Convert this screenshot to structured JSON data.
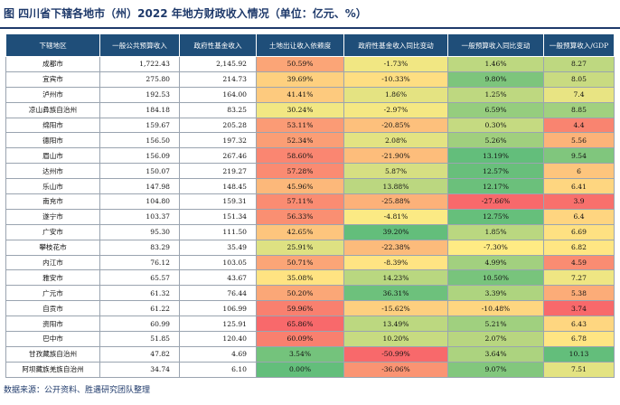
{
  "title": "图  四川省下辖各地市（州）2022 年地方财政收入情况（单位：亿元、%）",
  "source": "数据来源：公开资料、胜遇研究团队整理",
  "colors": {
    "header_bg": "#1f4e79",
    "high": "#63be7b",
    "mid": "#ffeb84",
    "low": "#f8696b"
  },
  "table": {
    "headers": [
      "下辖地区",
      "一般公共预算收入",
      "政府性基金收入",
      "土地出让收入依赖度",
      "政府性基金收入同比变动",
      "一般预算收入同比变动",
      "一般预算收入/GDP"
    ],
    "rows": [
      [
        "成都市",
        "1,722.43",
        "2,145.92",
        "50.59%",
        "-1.73%",
        "1.46%",
        "8.27"
      ],
      [
        "宜宾市",
        "275.80",
        "214.73",
        "39.69%",
        "-10.33%",
        "9.80%",
        "8.05"
      ],
      [
        "泸州市",
        "192.53",
        "164.00",
        "41.41%",
        "1.86%",
        "1.25%",
        "7.4"
      ],
      [
        "凉山彝族自治州",
        "184.18",
        "83.25",
        "30.24%",
        "-2.97%",
        "6.59%",
        "8.85"
      ],
      [
        "绵阳市",
        "159.67",
        "205.28",
        "53.11%",
        "-20.85%",
        "0.30%",
        "4.4"
      ],
      [
        "德阳市",
        "156.50",
        "197.32",
        "52.34%",
        "2.08%",
        "5.26%",
        "5.56"
      ],
      [
        "眉山市",
        "156.09",
        "267.46",
        "58.60%",
        "-21.90%",
        "13.19%",
        "9.54"
      ],
      [
        "达州市",
        "150.07",
        "219.27",
        "57.28%",
        "5.87%",
        "12.57%",
        "6"
      ],
      [
        "乐山市",
        "147.98",
        "148.45",
        "45.96%",
        "13.88%",
        "12.17%",
        "6.41"
      ],
      [
        "南充市",
        "104.80",
        "159.31",
        "57.11%",
        "-25.88%",
        "-27.66%",
        "3.9"
      ],
      [
        "遂宁市",
        "103.37",
        "151.34",
        "56.33%",
        "-4.81%",
        "12.75%",
        "6.4"
      ],
      [
        "广安市",
        "95.30",
        "111.50",
        "42.65%",
        "39.20%",
        "1.85%",
        "6.69"
      ],
      [
        "攀枝花市",
        "83.29",
        "35.49",
        "25.91%",
        "-22.38%",
        "-7.30%",
        "6.82"
      ],
      [
        "内江市",
        "76.12",
        "103.05",
        "50.71%",
        "-8.39%",
        "4.99%",
        "4.59"
      ],
      [
        "雅安市",
        "65.57",
        "43.67",
        "35.08%",
        "14.23%",
        "10.50%",
        "7.27"
      ],
      [
        "广元市",
        "61.32",
        "76.44",
        "50.20%",
        "36.31%",
        "3.39%",
        "5.38"
      ],
      [
        "自贡市",
        "61.22",
        "106.99",
        "59.96%",
        "-15.62%",
        "-10.48%",
        "3.74"
      ],
      [
        "资阳市",
        "60.99",
        "125.91",
        "65.86%",
        "13.49%",
        "5.21%",
        "6.43"
      ],
      [
        "巴中市",
        "51.85",
        "120.40",
        "60.09%",
        "10.20%",
        "2.07%",
        "6.78"
      ],
      [
        "甘孜藏族自治州",
        "47.82",
        "4.69",
        "3.54%",
        "-50.99%",
        "3.64%",
        "10.13"
      ],
      [
        "阿坝藏族羌族自治州",
        "34.74",
        "6.10",
        "0.00%",
        "-36.06%",
        "9.07%",
        "7.51"
      ]
    ]
  }
}
